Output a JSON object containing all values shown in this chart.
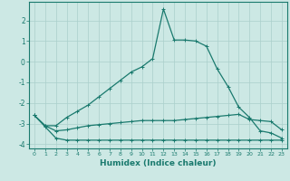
{
  "xlabel": "Humidex (Indice chaleur)",
  "background_color": "#cce8e4",
  "grid_color": "#aacfcb",
  "line_color": "#1a7a6e",
  "xlim": [
    -0.5,
    23.5
  ],
  "ylim": [
    -4.2,
    2.9
  ],
  "yticks": [
    -4,
    -3,
    -2,
    -1,
    0,
    1,
    2
  ],
  "xticks": [
    0,
    1,
    2,
    3,
    4,
    5,
    6,
    7,
    8,
    9,
    10,
    11,
    12,
    13,
    14,
    15,
    16,
    17,
    18,
    19,
    20,
    21,
    22,
    23
  ],
  "line_bottom_x": [
    0,
    1,
    2,
    3,
    4,
    5,
    6,
    7,
    8,
    9,
    10,
    11,
    12,
    13,
    14,
    15,
    16,
    17,
    18,
    19,
    20,
    21,
    22,
    23
  ],
  "line_bottom_y": [
    -2.6,
    -3.15,
    -3.7,
    -3.8,
    -3.8,
    -3.8,
    -3.8,
    -3.8,
    -3.8,
    -3.8,
    -3.8,
    -3.8,
    -3.8,
    -3.8,
    -3.8,
    -3.8,
    -3.8,
    -3.8,
    -3.8,
    -3.8,
    -3.8,
    -3.8,
    -3.8,
    -3.8
  ],
  "line_mid_x": [
    0,
    1,
    2,
    3,
    4,
    5,
    6,
    7,
    8,
    9,
    10,
    11,
    12,
    13,
    14,
    15,
    16,
    17,
    18,
    19,
    20,
    21,
    22,
    23
  ],
  "line_mid_y": [
    -2.6,
    -3.1,
    -3.35,
    -3.3,
    -3.2,
    -3.1,
    -3.05,
    -3.0,
    -2.95,
    -2.9,
    -2.85,
    -2.85,
    -2.85,
    -2.85,
    -2.8,
    -2.75,
    -2.7,
    -2.65,
    -2.6,
    -2.55,
    -2.8,
    -2.85,
    -2.9,
    -3.3
  ],
  "line_main_x": [
    0,
    1,
    2,
    3,
    4,
    5,
    6,
    7,
    8,
    9,
    10,
    11,
    12,
    13,
    14,
    15,
    16,
    17,
    18,
    19,
    20,
    21,
    22,
    23
  ],
  "line_main_y": [
    -2.6,
    -3.1,
    -3.1,
    -2.7,
    -2.4,
    -2.1,
    -1.7,
    -1.3,
    -0.9,
    -0.5,
    -0.25,
    0.15,
    2.55,
    1.05,
    1.05,
    1.0,
    0.75,
    -0.35,
    -1.2,
    -2.2,
    -2.7,
    -3.35,
    -3.45,
    -3.7
  ]
}
